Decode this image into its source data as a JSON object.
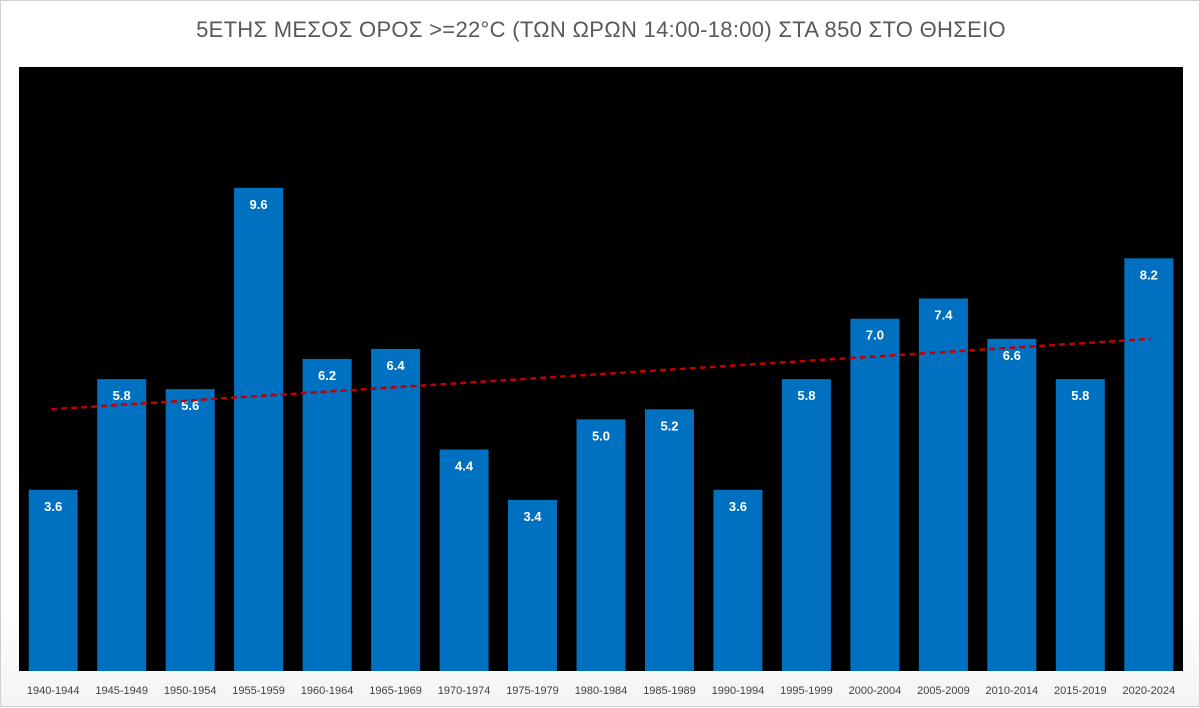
{
  "chart_data": {
    "type": "bar",
    "title": "5ΕΤΗΣ ΜΕΣΟΣ ΟΡΟΣ >=22°C (ΤΩΝ ΩΡΩΝ 14:00-18:00) ΣΤΑ 850 ΣΤΟ ΘΗΣΕΙΟ",
    "categories": [
      "1940-1944",
      "1945-1949",
      "1950-1954",
      "1955-1959",
      "1960-1964",
      "1965-1969",
      "1970-1974",
      "1975-1979",
      "1980-1984",
      "1985-1989",
      "1990-1994",
      "1995-1999",
      "2000-2004",
      "2005-2009",
      "2010-2014",
      "2015-2019",
      "2020-2024"
    ],
    "values": [
      3.6,
      5.8,
      5.6,
      9.6,
      6.2,
      6.4,
      4.4,
      3.4,
      5.0,
      5.2,
      3.6,
      5.8,
      7.0,
      7.4,
      6.6,
      5.8,
      8.2
    ],
    "value_labels": [
      "3.6",
      "5.8",
      "5.6",
      "9.6",
      "6.2",
      "6.4",
      "4.4",
      "3.4",
      "5.0",
      "5.2",
      "3.6",
      "5.8",
      "7.0",
      "7.4",
      "6.6",
      "5.8",
      "8.2"
    ],
    "xlabel": "",
    "ylabel": "",
    "ylim": [
      0,
      12
    ],
    "grid": false,
    "trendline": {
      "type": "linear",
      "start": 5.2,
      "end": 6.6,
      "style": "dashed"
    },
    "colors": {
      "bar": "#0070c0",
      "plot_background": "#000000",
      "trendline": "#c00000"
    }
  }
}
